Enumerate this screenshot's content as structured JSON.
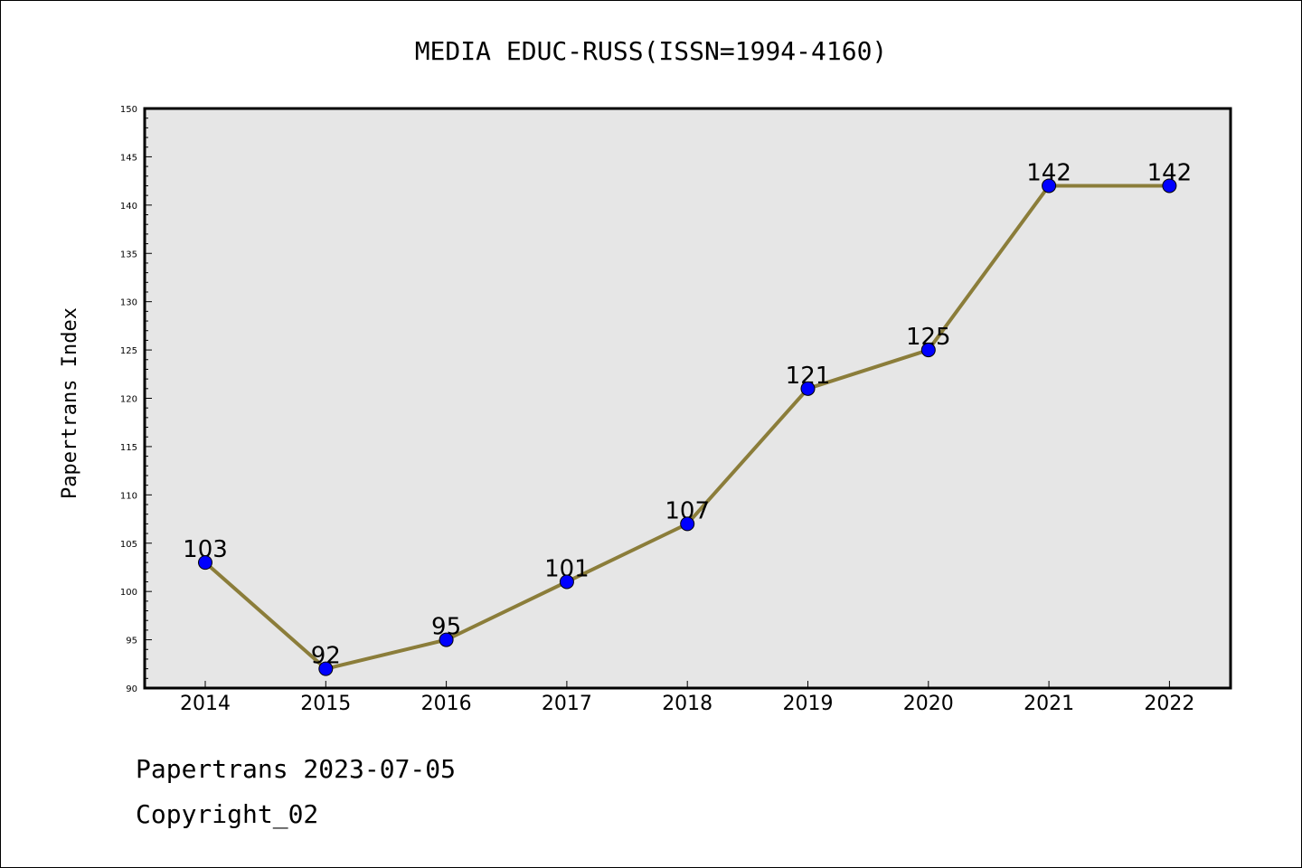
{
  "chart_data": {
    "type": "line",
    "title": "MEDIA EDUC-RUSS(ISSN=1994-4160)",
    "xlabel": "",
    "ylabel": "Papertrans Index",
    "categories": [
      "2014",
      "2015",
      "2016",
      "2017",
      "2018",
      "2019",
      "2020",
      "2021",
      "2022"
    ],
    "values": [
      103,
      92,
      95,
      101,
      107,
      121,
      125,
      142,
      142
    ],
    "ylim": [
      90,
      150
    ],
    "yticks": [
      90,
      95,
      100,
      105,
      110,
      115,
      120,
      125,
      130,
      135,
      140,
      145,
      150
    ],
    "grid": false,
    "legend": "none",
    "line_color": "#8B7D3A",
    "marker_color": "#0000FF",
    "plot_background": "#E6E6E6"
  },
  "footer": {
    "line1": "Papertrans 2023-07-05",
    "line2": "Copyright_02"
  }
}
